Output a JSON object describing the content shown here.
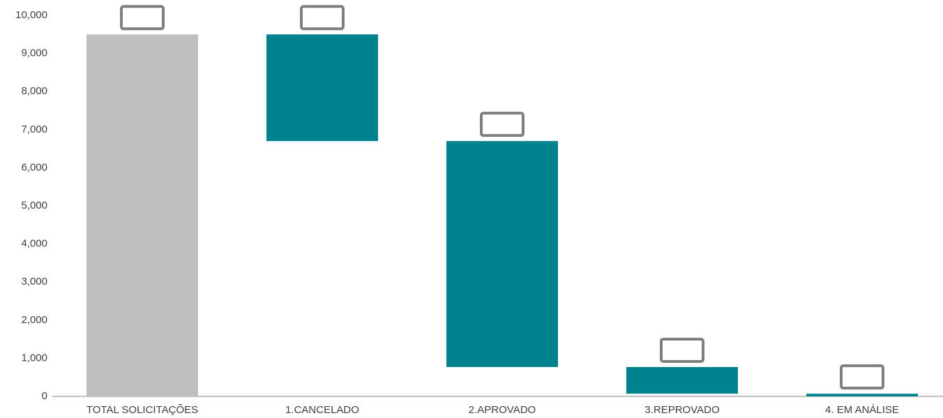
{
  "chart_data": {
    "type": "waterfall",
    "categories": [
      "TOTAL SOLICITAÇÕES",
      "1.CANCELADO",
      "2.APROVADO",
      "3.REPROVADO",
      "4. EM ANÁLISE"
    ],
    "values": [
      9500,
      -2800,
      -5930,
      -700,
      -70
    ],
    "measures": [
      "total",
      "relative",
      "relative",
      "relative",
      "relative"
    ],
    "total_color": "#bfbfbf",
    "color": "#00838f",
    "ylim": [
      0,
      10000
    ],
    "yticks": [
      0,
      {
        "value": 1000,
        "label": "1,000"
      },
      {
        "value": 2000,
        "label": "2,000"
      },
      {
        "value": 3000,
        "label": "3,000"
      },
      {
        "value": 4000,
        "label": "4,000"
      },
      {
        "value": 5000,
        "label": "5,000"
      },
      {
        "value": 6000,
        "label": "6,000"
      },
      {
        "value": 7000,
        "label": "7,000"
      },
      {
        "value": 8000,
        "label": "8,000"
      },
      {
        "value": 9000,
        "label": "9,000"
      },
      {
        "value": 10000,
        "label": "10,000"
      }
    ],
    "grid": false
  }
}
